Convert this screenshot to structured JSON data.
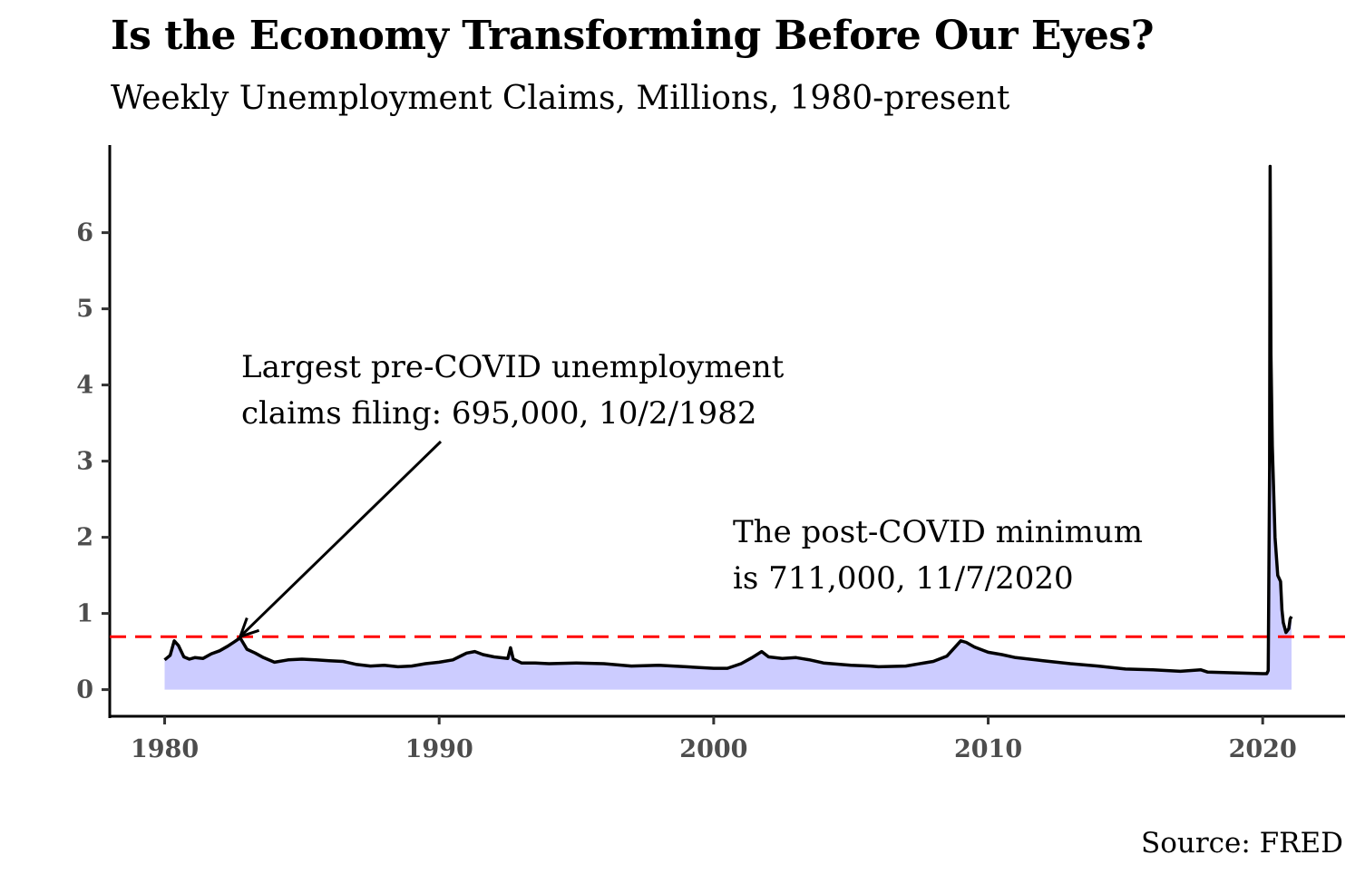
{
  "chart_data": {
    "type": "area",
    "title": "Is the Economy Transforming Before Our Eyes?",
    "subtitle": "Weekly Unemployment Claims, Millions, 1980-present",
    "xlabel": "",
    "ylabel": "",
    "source": "Source: FRED",
    "xlim": [
      1978,
      2023
    ],
    "ylim": [
      -0.35,
      7.15
    ],
    "x_ticks": [
      1980,
      1990,
      2000,
      2010,
      2020
    ],
    "x_tick_labels": [
      "1980",
      "1990",
      "2000",
      "2010",
      "2020"
    ],
    "y_ticks": [
      0,
      1,
      2,
      3,
      4,
      5,
      6
    ],
    "y_tick_labels": [
      "0",
      "1",
      "2",
      "3",
      "4",
      "5",
      "6"
    ],
    "grid": false,
    "colors": {
      "line": "#000000",
      "fill": "#ccccff",
      "reference_line": "#ff0000"
    },
    "reference_line": {
      "y": 0.695,
      "style": "dashed"
    },
    "series": [
      {
        "x": [
          1980.0,
          1980.2,
          1980.35,
          1980.5,
          1980.7,
          1980.9,
          1981.1,
          1981.4,
          1981.7,
          1982.0,
          1982.3,
          1982.55,
          1982.75,
          1983.0,
          1983.3,
          1983.6,
          1984.0,
          1984.5,
          1985.0,
          1985.5,
          1986.0,
          1986.5,
          1987.0,
          1987.5,
          1988.0,
          1988.5,
          1989.0,
          1989.5,
          1990.0,
          1990.5,
          1991.0,
          1991.3,
          1991.6,
          1992.0,
          1992.5,
          1992.6,
          1992.7,
          1993.0,
          1993.5,
          1994.0,
          1995.0,
          1996.0,
          1997.0,
          1998.0,
          1999.0,
          2000.0,
          2000.5,
          2001.0,
          2001.4,
          2001.75,
          2002.0,
          2002.5,
          2003.0,
          2003.5,
          2004.0,
          2005.0,
          2005.7,
          2006.0,
          2007.0,
          2008.0,
          2008.5,
          2009.0,
          2009.2,
          2009.5,
          2010.0,
          2010.5,
          2011.0,
          2012.0,
          2013.0,
          2014.0,
          2015.0,
          2016.0,
          2017.0,
          2017.75,
          2018.0,
          2019.0,
          2020.0,
          2020.15,
          2020.2,
          2020.25,
          2020.27,
          2020.3,
          2020.35,
          2020.45,
          2020.55,
          2020.65,
          2020.7,
          2020.75,
          2020.85,
          2020.95,
          2021.0,
          2021.05
        ],
        "values": [
          0.39,
          0.45,
          0.64,
          0.58,
          0.43,
          0.4,
          0.42,
          0.41,
          0.47,
          0.51,
          0.57,
          0.63,
          0.68,
          0.53,
          0.48,
          0.42,
          0.36,
          0.39,
          0.4,
          0.39,
          0.38,
          0.37,
          0.33,
          0.31,
          0.32,
          0.3,
          0.31,
          0.34,
          0.36,
          0.39,
          0.48,
          0.5,
          0.46,
          0.43,
          0.41,
          0.55,
          0.4,
          0.35,
          0.35,
          0.34,
          0.35,
          0.34,
          0.31,
          0.32,
          0.3,
          0.28,
          0.28,
          0.34,
          0.42,
          0.5,
          0.43,
          0.41,
          0.42,
          0.39,
          0.35,
          0.32,
          0.31,
          0.3,
          0.31,
          0.37,
          0.44,
          0.64,
          0.62,
          0.56,
          0.49,
          0.46,
          0.42,
          0.38,
          0.34,
          0.31,
          0.27,
          0.26,
          0.24,
          0.26,
          0.23,
          0.22,
          0.21,
          0.21,
          0.25,
          2.9,
          6.87,
          4.4,
          3.2,
          2.0,
          1.5,
          1.42,
          1.05,
          0.88,
          0.75,
          0.8,
          0.93,
          0.96
        ]
      }
    ],
    "annotations": [
      {
        "lines": [
          "Largest pre-COVID unemployment",
          "claims filing: 695,000, 10/2/1982"
        ],
        "arrow_to": [
          1982.75,
          0.695
        ]
      },
      {
        "lines": [
          "The post-COVID minimum",
          "is 711,000, 11/7/2020"
        ]
      }
    ]
  }
}
